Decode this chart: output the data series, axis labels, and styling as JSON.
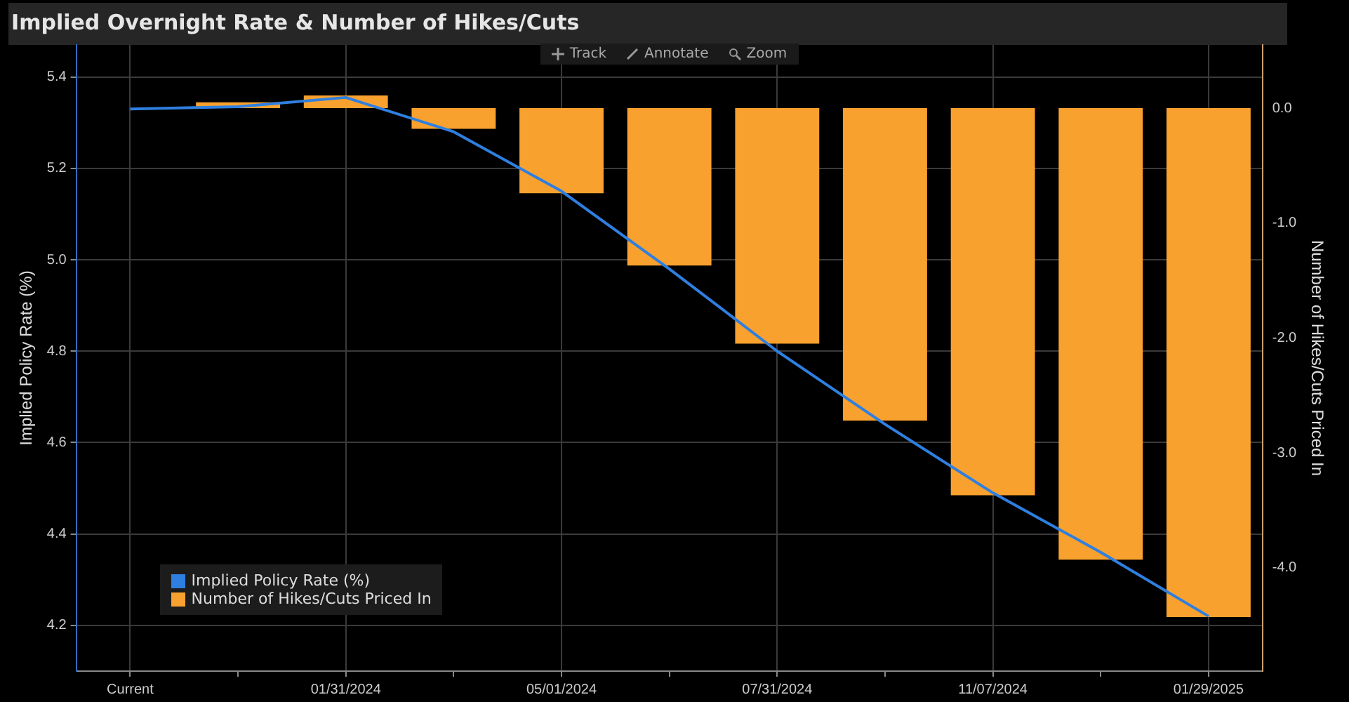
{
  "chart_data": {
    "type": "bar",
    "title": "Implied Overnight Rate & Number of Hikes/Cuts",
    "ylabel": "Implied Policy Rate (%)",
    "y2label": "Number of Hikes/Cuts Priced In",
    "annotations": [
      "Track",
      "Annotate",
      "Zoom"
    ],
    "categories": [
      "Current",
      null,
      "01/31/2024",
      null,
      "05/01/2024",
      null,
      "07/31/2024",
      null,
      "11/07/2024",
      null,
      "01/29/2025"
    ],
    "series": [
      {
        "name": "Implied Policy Rate (%)",
        "type": "line",
        "color": "#2f7fe0",
        "values": [
          5.33,
          5.335,
          5.355,
          5.28,
          5.15,
          4.98,
          4.8,
          4.64,
          4.49,
          4.36,
          4.22
        ]
      },
      {
        "name": "Number of Hikes/Cuts Priced In",
        "axis": "y2",
        "color": "#f9a12e",
        "values": [
          null,
          0.05,
          0.11,
          -0.18,
          -0.74,
          -1.37,
          -2.05,
          -2.72,
          -3.37,
          -3.93,
          -4.43
        ]
      }
    ],
    "ylim": [
      4.1,
      5.47
    ],
    "yticks": [
      4.2,
      4.4,
      4.6,
      4.8,
      {
        "value": 5,
        "label": "5.0"
      },
      5.2,
      5.4
    ],
    "y2lim": [
      -4.9,
      0.55
    ],
    "y2ticks": [
      {
        "value": -4,
        "label": "-4.0"
      },
      {
        "value": -3,
        "label": "-3.0"
      },
      {
        "value": -2,
        "label": "-2.0"
      },
      {
        "value": -1,
        "label": "-1.0"
      },
      {
        "value": 0,
        "label": "0.0"
      }
    ],
    "grid": true,
    "legend": "bottom left",
    "marker": "none",
    "line_style": "solid"
  }
}
